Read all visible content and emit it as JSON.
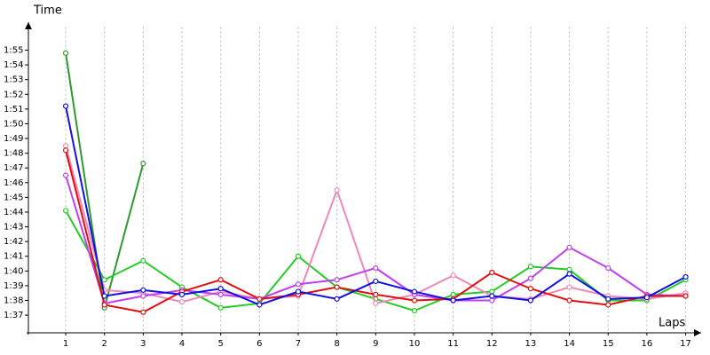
{
  "chart_data": {
    "type": "line",
    "y_label": "Time",
    "x_label": "Laps",
    "x": [
      1,
      2,
      3,
      4,
      5,
      6,
      7,
      8,
      9,
      10,
      11,
      12,
      13,
      14,
      15,
      16,
      17
    ],
    "xlim": [
      0,
      17.4
    ],
    "xticks": [
      1,
      2,
      3,
      4,
      5,
      6,
      7,
      8,
      9,
      10,
      11,
      12,
      13,
      14,
      15,
      16,
      17
    ],
    "ylim": [
      95.8,
      116.9
    ],
    "yticks": [
      {
        "value": 97,
        "label": "1:37"
      },
      {
        "value": 98,
        "label": "1:38"
      },
      {
        "value": 99,
        "label": "1:39"
      },
      {
        "value": 100,
        "label": "1:40"
      },
      {
        "value": 101,
        "label": "1:41"
      },
      {
        "value": 102,
        "label": "1:42"
      },
      {
        "value": 103,
        "label": "1:43"
      },
      {
        "value": 104,
        "label": "1:44"
      },
      {
        "value": 105,
        "label": "1:45"
      },
      {
        "value": 106,
        "label": "1:46"
      },
      {
        "value": 107,
        "label": "1:47"
      },
      {
        "value": 108,
        "label": "1:48"
      },
      {
        "value": 109,
        "label": "1:49"
      },
      {
        "value": 110,
        "label": "1:50"
      },
      {
        "value": 111,
        "label": "1:51"
      },
      {
        "value": 112,
        "label": "1:52"
      },
      {
        "value": 113,
        "label": "1:53"
      },
      {
        "value": 114,
        "label": "1:54"
      },
      {
        "value": 115,
        "label": "1:55"
      }
    ],
    "grid": "x",
    "series": [
      {
        "color": "#2e9a2e",
        "values": [
          114.8,
          97.5,
          107.3,
          null,
          null,
          null,
          null,
          null,
          null,
          null,
          null,
          null,
          null,
          null,
          null,
          null,
          null
        ]
      },
      {
        "color": "#22cc22",
        "values": [
          104.1,
          99.4,
          100.7,
          98.9,
          97.5,
          97.8,
          101.0,
          98.9,
          98.1,
          97.3,
          98.4,
          98.6,
          100.3,
          100.1,
          98.0,
          98.0,
          99.4
        ]
      },
      {
        "color": "#f088b8",
        "values": [
          108.5,
          98.7,
          98.5,
          97.9,
          98.6,
          98.1,
          98.3,
          105.5,
          97.8,
          98.4,
          99.7,
          98.3,
          98.1,
          98.9,
          98.3,
          98.1,
          98.5
        ]
      },
      {
        "color": "#c040f0",
        "values": [
          106.5,
          97.8,
          98.3,
          98.7,
          98.4,
          98.1,
          99.1,
          99.4,
          100.2,
          98.4,
          98.0,
          98.0,
          99.5,
          101.6,
          100.2,
          98.4,
          98.3
        ]
      },
      {
        "color": "#e01010",
        "values": [
          108.2,
          97.7,
          97.2,
          98.6,
          99.4,
          98.1,
          98.4,
          98.9,
          98.4,
          98.0,
          98.1,
          99.9,
          98.8,
          98.0,
          97.7,
          98.3,
          98.3
        ]
      },
      {
        "color": "#1010e0",
        "values": [
          111.2,
          98.3,
          98.7,
          98.4,
          98.8,
          97.7,
          98.6,
          98.1,
          99.3,
          98.6,
          98.0,
          98.3,
          98.0,
          99.8,
          98.1,
          98.2,
          99.6
        ]
      }
    ]
  }
}
